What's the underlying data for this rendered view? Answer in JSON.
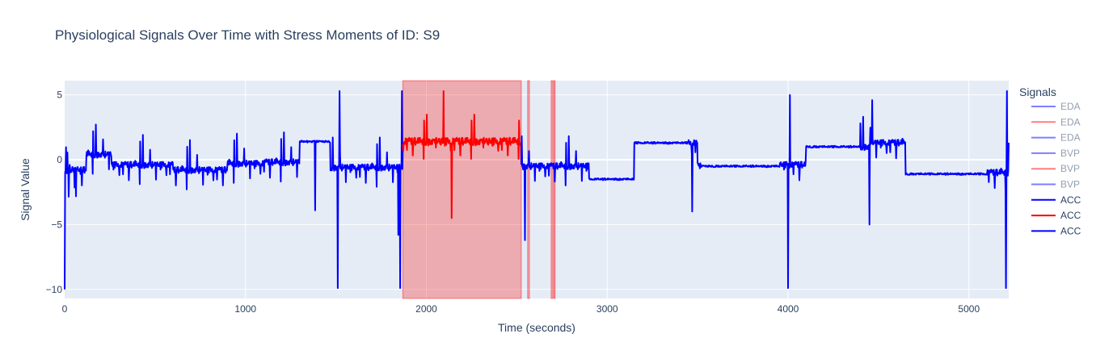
{
  "chart_data": {
    "type": "line",
    "title": "Physiological Signals Over Time with Stress Moments of ID: S9",
    "xlabel": "Time (seconds)",
    "ylabel": "Signal Value",
    "xlim": [
      0,
      5220
    ],
    "ylim": [
      -10.7,
      6.1
    ],
    "x_ticks": [
      0,
      1000,
      2000,
      3000,
      4000,
      5000
    ],
    "y_ticks": [
      5,
      0,
      -5,
      -10
    ],
    "y_tick_labels": [
      "5",
      "0",
      "−5",
      "−10"
    ],
    "grid": true,
    "legend_title": "Signals",
    "legend_placement": "right",
    "legend": [
      {
        "name": "EDA",
        "color": "#0000ff",
        "faded": true
      },
      {
        "name": "EDA",
        "color": "#ff0000",
        "faded": true
      },
      {
        "name": "EDA",
        "color": "#0000ff",
        "faded": true
      },
      {
        "name": "BVP",
        "color": "#0000ff",
        "faded": true
      },
      {
        "name": "BVP",
        "color": "#ff0000",
        "faded": true
      },
      {
        "name": "BVP",
        "color": "#0000ff",
        "faded": true
      },
      {
        "name": "ACC",
        "color": "#0000ff",
        "faded": false
      },
      {
        "name": "ACC",
        "color": "#ff0000",
        "faded": false
      },
      {
        "name": "ACC",
        "color": "#0000ff",
        "faded": false
      }
    ],
    "stress_regions": [
      [
        1870,
        2525
      ],
      [
        2560,
        2570
      ],
      [
        2690,
        2700
      ],
      [
        2705,
        2712
      ]
    ],
    "series": [
      {
        "name": "ACC",
        "color": "#0000ff",
        "segment": [
          0,
          1870
        ]
      },
      {
        "name": "ACC",
        "color": "#ff0000",
        "segment": [
          1870,
          2525
        ]
      },
      {
        "name": "ACC",
        "color": "#0000ff",
        "segment": [
          2525,
          5220
        ]
      }
    ],
    "baseline_levels": [
      {
        "x": [
          0,
          120
        ],
        "y": -0.8
      },
      {
        "x": [
          120,
          260
        ],
        "y": 0.4
      },
      {
        "x": [
          260,
          600
        ],
        "y": -0.4
      },
      {
        "x": [
          600,
          900
        ],
        "y": -0.8
      },
      {
        "x": [
          900,
          1100
        ],
        "y": -0.3
      },
      {
        "x": [
          1100,
          1300
        ],
        "y": -0.2
      },
      {
        "x": [
          1300,
          1470
        ],
        "y": 1.4
      },
      {
        "x": [
          1470,
          1870
        ],
        "y": -0.6
      },
      {
        "x": [
          1870,
          2525
        ],
        "y": 1.4
      },
      {
        "x": [
          2525,
          2900
        ],
        "y": -0.5
      },
      {
        "x": [
          2900,
          3150
        ],
        "y": -1.5
      },
      {
        "x": [
          3150,
          3500
        ],
        "y": 1.3
      },
      {
        "x": [
          3500,
          3950
        ],
        "y": -0.5
      },
      {
        "x": [
          3950,
          4100
        ],
        "y": -0.4
      },
      {
        "x": [
          4100,
          4450
        ],
        "y": 1.0
      },
      {
        "x": [
          4450,
          4650
        ],
        "y": 1.3
      },
      {
        "x": [
          4650,
          5100
        ],
        "y": -1.1
      },
      {
        "x": [
          5100,
          5220
        ],
        "y": -1.0
      }
    ],
    "spikes": [
      {
        "x": 0,
        "y": -10.0
      },
      {
        "x": 1385,
        "y": -3.9
      },
      {
        "x": 1510,
        "y": -9.9
      },
      {
        "x": 1520,
        "y": 5.3
      },
      {
        "x": 1845,
        "y": -5.8
      },
      {
        "x": 1855,
        "y": -9.9
      },
      {
        "x": 1865,
        "y": 5.3
      },
      {
        "x": 2140,
        "y": -4.5
      },
      {
        "x": 2095,
        "y": 5.3
      },
      {
        "x": 2545,
        "y": -6.2
      },
      {
        "x": 3470,
        "y": -4.0
      },
      {
        "x": 4000,
        "y": -9.9
      },
      {
        "x": 4010,
        "y": 5.0
      },
      {
        "x": 4450,
        "y": -5.0
      },
      {
        "x": 4465,
        "y": 4.6
      },
      {
        "x": 5205,
        "y": -9.9
      },
      {
        "x": 5210,
        "y": 5.3
      }
    ]
  }
}
